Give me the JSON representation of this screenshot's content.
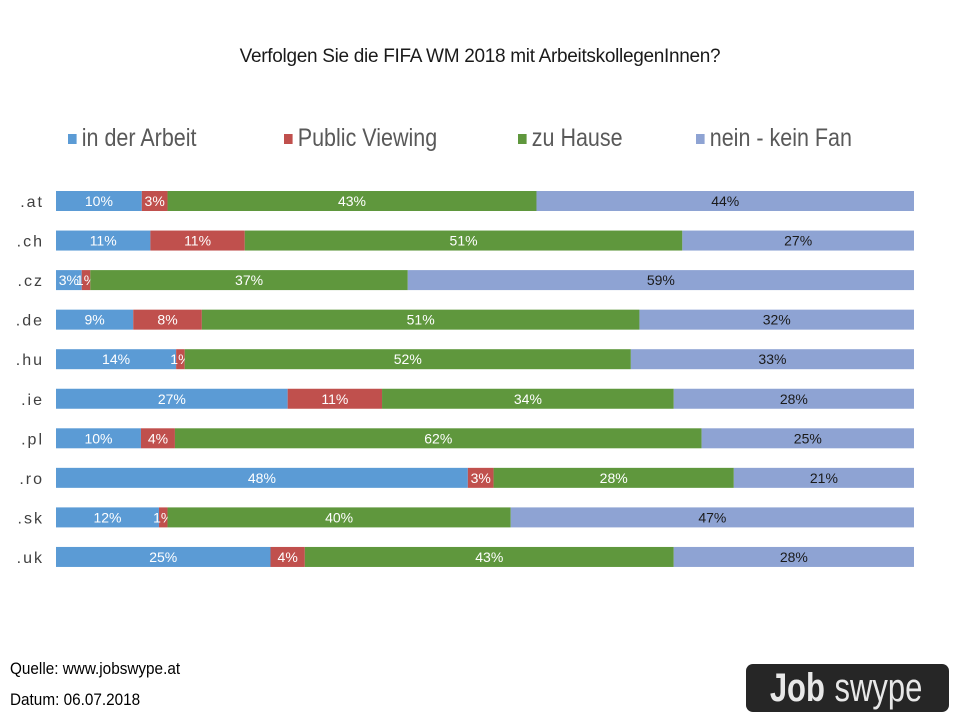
{
  "chart_data": {
    "type": "bar",
    "orientation": "horizontal",
    "stacked": "100%",
    "title": "Verfolgen Sie die FIFA WM 2018 mit ArbeitskollegenInnen?",
    "xlabel": "",
    "ylabel": "",
    "legend_position": "top",
    "grid": false,
    "categories": [
      ".at",
      ".ch",
      ".cz",
      ".de",
      ".hu",
      ".ie",
      ".pl",
      ".ro",
      ".sk",
      ".uk"
    ],
    "series": [
      {
        "name": "in der Arbeit",
        "color": "#5b9bd5",
        "label_color": "#ffffff",
        "values": [
          10,
          11,
          3,
          9,
          14,
          27,
          10,
          48,
          12,
          25
        ]
      },
      {
        "name": "Public Viewing",
        "color": "#c0504d",
        "label_color": "#ffffff",
        "values": [
          3,
          11,
          1,
          8,
          1,
          11,
          4,
          3,
          1,
          4
        ]
      },
      {
        "name": "zu Hause",
        "color": "#5f973d",
        "label_color": "#ffffff",
        "values": [
          43,
          51,
          37,
          51,
          52,
          34,
          62,
          28,
          40,
          43
        ]
      },
      {
        "name": "nein - kein Fan",
        "color": "#8ea3d3",
        "label_color": "#1a1a1a",
        "values": [
          44,
          27,
          59,
          32,
          33,
          28,
          25,
          21,
          47,
          28
        ]
      }
    ],
    "value_suffix": "%"
  },
  "footer": {
    "source": "Quelle: www.jobswype.at",
    "date": "Datum: 06.07.2018"
  },
  "logo": {
    "text_bold": "Job",
    "text_regular": "swype"
  }
}
